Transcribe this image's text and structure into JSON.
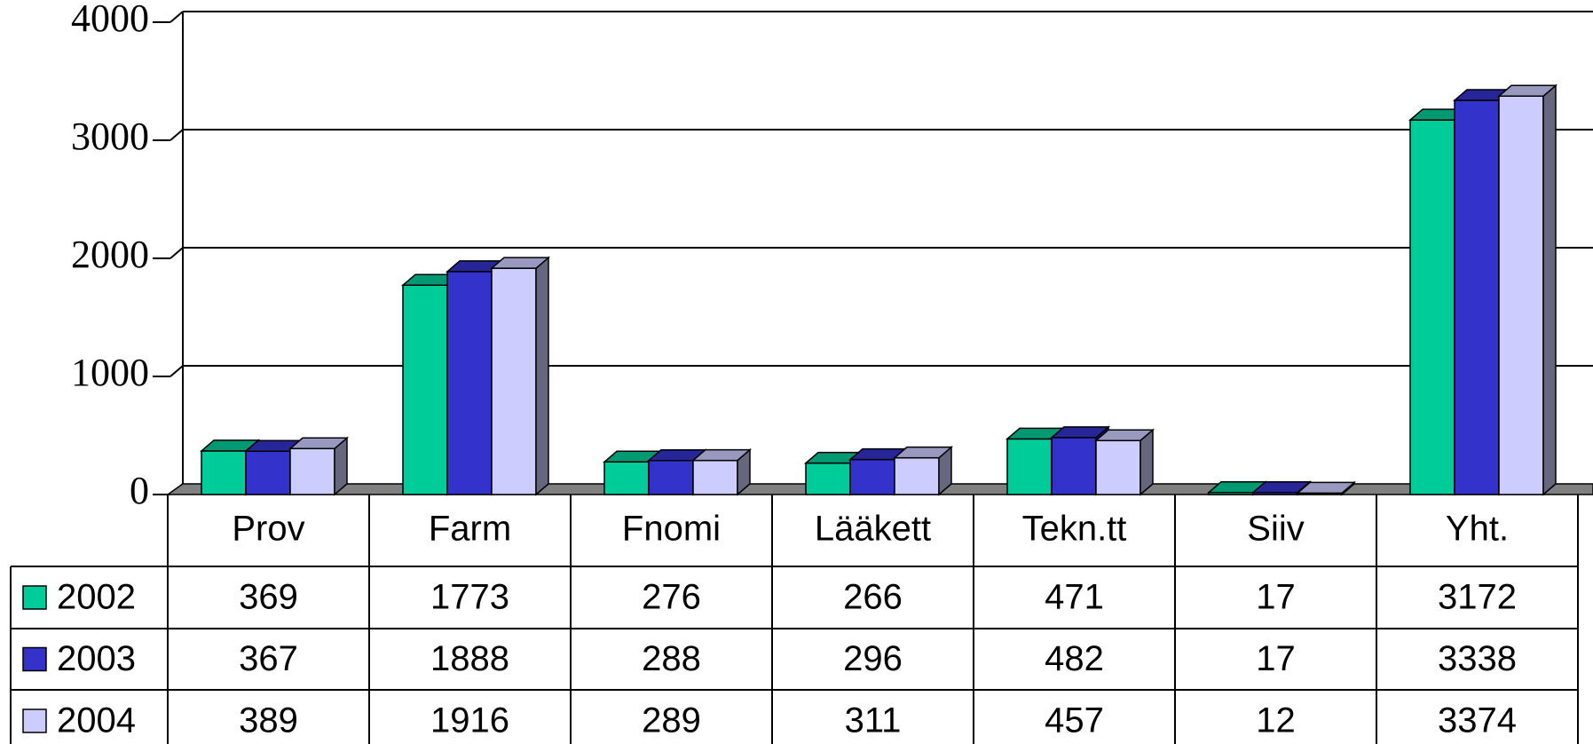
{
  "chart_data": {
    "type": "bar",
    "categories": [
      "Prov",
      "Farm",
      "Fnomi",
      "Lääkett",
      "Tekn.tt",
      "Siiv",
      "Yht."
    ],
    "series": [
      {
        "name": "2002",
        "color": "#00cc99",
        "values": [
          369,
          1773,
          276,
          266,
          471,
          17,
          3172
        ]
      },
      {
        "name": "2003",
        "color": "#3333cc",
        "values": [
          367,
          1888,
          288,
          296,
          482,
          17,
          3338
        ]
      },
      {
        "name": "2004",
        "color": "#ccccff",
        "values": [
          389,
          1916,
          289,
          311,
          457,
          12,
          3374
        ]
      }
    ],
    "ylim": [
      0,
      4000
    ],
    "yticks": [
      0,
      1000,
      2000,
      3000,
      4000
    ],
    "grid": true
  }
}
